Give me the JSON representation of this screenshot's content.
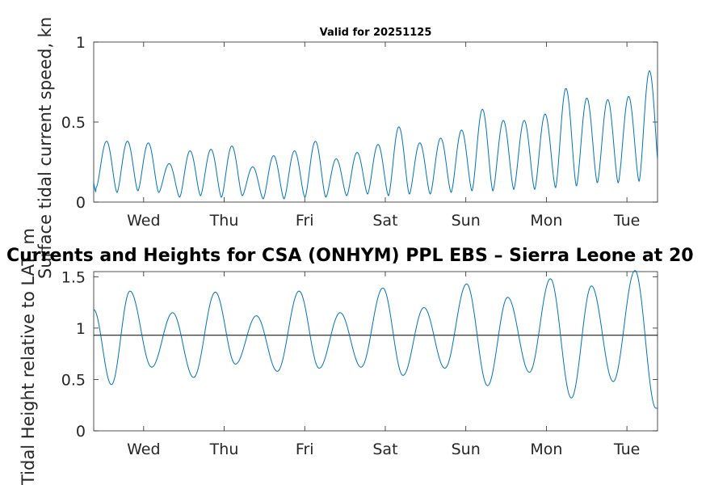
{
  "chart_data": [
    {
      "type": "line",
      "title": "Valid for 20251125",
      "ylabel": "Surface tidal current speed, kn",
      "ylim": [
        0,
        1
      ],
      "yticks": [
        0,
        0.5,
        1
      ],
      "ytick_labels": [
        "0",
        "0.5",
        "1"
      ],
      "xlim_days": [
        0,
        7
      ],
      "x_ticks_days": [
        0.62,
        1.62,
        2.62,
        3.62,
        4.62,
        5.62,
        6.62
      ],
      "x_tick_labels": [
        "Wed",
        "Thu",
        "Fri",
        "Sat",
        "Sun",
        "Mon",
        "Tue"
      ],
      "series": [
        {
          "name": "current speed",
          "color": "#0072bd",
          "peaks": [
            0.38,
            0.38,
            0.37,
            0.24,
            0.32,
            0.33,
            0.35,
            0.22,
            0.29,
            0.32,
            0.38,
            0.27,
            0.31,
            0.36,
            0.47,
            0.37,
            0.4,
            0.45,
            0.58,
            0.51,
            0.51,
            0.55,
            0.71,
            0.65,
            0.64,
            0.66,
            0.82
          ],
          "troughs": [
            0.09,
            0.06,
            0.07,
            0.06,
            0.03,
            0.04,
            0.03,
            0.04,
            0.02,
            0.02,
            0.03,
            0.03,
            0.04,
            0.05,
            0.04,
            0.05,
            0.05,
            0.06,
            0.07,
            0.07,
            0.08,
            0.08,
            0.09,
            0.1,
            0.12,
            0.12,
            0.13
          ]
        }
      ]
    },
    {
      "type": "line",
      "title": "Currents and Heights for CSA (ONHYM) PPL EBS  – Sierra Leone at 20",
      "ylabel": "Tidal Height relative to LAT, m",
      "ylim": [
        0,
        1.55
      ],
      "yticks": [
        0,
        0.5,
        1,
        1.5
      ],
      "ytick_labels": [
        "0",
        "0.5",
        "1",
        "1.5"
      ],
      "reference_line": 0.93,
      "xlim_days": [
        0,
        7
      ],
      "x_ticks_days": [
        0.62,
        1.62,
        2.62,
        3.62,
        4.62,
        5.62,
        6.62
      ],
      "x_tick_labels": [
        "Wed",
        "Thu",
        "Fri",
        "Sat",
        "Sun",
        "Mon",
        "Tue"
      ],
      "series": [
        {
          "name": "tidal height",
          "color": "#0072bd",
          "extrema_days": [
            0,
            0.22,
            0.45,
            0.72,
            0.98,
            1.24,
            1.51,
            1.76,
            2.02,
            2.28,
            2.55,
            2.8,
            3.06,
            3.32,
            3.59,
            3.84,
            4.1,
            4.36,
            4.63,
            4.89,
            5.14,
            5.41,
            5.67,
            5.93,
            6.18,
            6.45,
            6.72,
            6.98,
            7.0
          ],
          "extrema_values": [
            1.18,
            0.45,
            1.36,
            0.62,
            1.15,
            0.52,
            1.35,
            0.65,
            1.12,
            0.58,
            1.36,
            0.61,
            1.15,
            0.62,
            1.39,
            0.54,
            1.2,
            0.61,
            1.43,
            0.44,
            1.3,
            0.57,
            1.48,
            0.32,
            1.41,
            0.48,
            1.56,
            0.22,
            0.22
          ]
        }
      ]
    }
  ]
}
